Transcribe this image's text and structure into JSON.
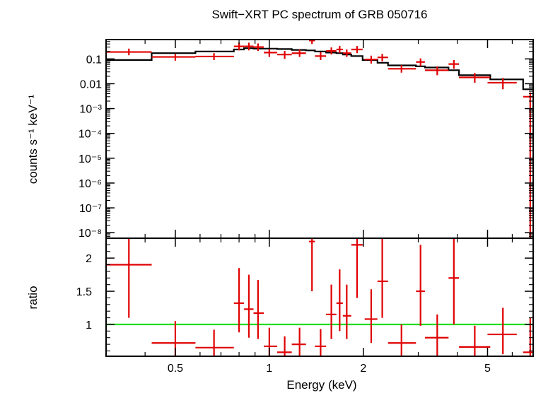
{
  "chart_data": [
    {
      "type": "scatter",
      "title": "Swift−XRT PC spectrum of GRB 050716",
      "xlabel": "Energy (keV)",
      "ylabel": "counts s⁻¹ keV⁻¹",
      "xscale": "log",
      "yscale": "log",
      "xlim": [
        0.3,
        7.0
      ],
      "ylim": [
        6e-09,
        0.6
      ],
      "y_tick_labels": [
        {
          "v": 0.1,
          "label": "0.1"
        },
        {
          "v": 0.01,
          "label": "0.01"
        },
        {
          "v": 0.001,
          "label": "10⁻³"
        },
        {
          "v": 0.0001,
          "label": "10⁻⁴"
        },
        {
          "v": 1e-05,
          "label": "10⁻⁵"
        },
        {
          "v": 1e-06,
          "label": "10⁻⁶"
        },
        {
          "v": 1e-07,
          "label": "10⁻⁷"
        },
        {
          "v": 1e-08,
          "label": "10⁻⁸"
        }
      ],
      "series": [
        {
          "name": "data",
          "color": "#e00000",
          "points": [
            {
              "x": 0.355,
              "xlo": 0.3,
              "xhi": 0.42,
              "y": 0.19,
              "ylo": 0.14,
              "yhi": 0.26
            },
            {
              "x": 0.5,
              "xlo": 0.42,
              "xhi": 0.58,
              "y": 0.12,
              "ylo": 0.085,
              "yhi": 0.16
            },
            {
              "x": 0.665,
              "xlo": 0.58,
              "xhi": 0.77,
              "y": 0.125,
              "ylo": 0.09,
              "yhi": 0.17
            },
            {
              "x": 0.8,
              "xlo": 0.77,
              "xhi": 0.83,
              "y": 0.32,
              "ylo": 0.22,
              "yhi": 0.45
            },
            {
              "x": 0.86,
              "xlo": 0.83,
              "xhi": 0.89,
              "y": 0.32,
              "ylo": 0.22,
              "yhi": 0.45
            },
            {
              "x": 0.92,
              "xlo": 0.89,
              "xhi": 0.96,
              "y": 0.3,
              "ylo": 0.21,
              "yhi": 0.42
            },
            {
              "x": 1.0,
              "xlo": 0.96,
              "xhi": 1.06,
              "y": 0.18,
              "ylo": 0.12,
              "yhi": 0.25
            },
            {
              "x": 1.12,
              "xlo": 1.06,
              "xhi": 1.18,
              "y": 0.15,
              "ylo": 0.1,
              "yhi": 0.21
            },
            {
              "x": 1.25,
              "xlo": 1.18,
              "xhi": 1.31,
              "y": 0.17,
              "ylo": 0.12,
              "yhi": 0.24
            },
            {
              "x": 1.37,
              "xlo": 1.34,
              "xhi": 1.4,
              "y": 0.55,
              "ylo": 0.4,
              "yhi": 0.75
            },
            {
              "x": 1.46,
              "xlo": 1.4,
              "xhi": 1.52,
              "y": 0.13,
              "ylo": 0.09,
              "yhi": 0.19
            },
            {
              "x": 1.58,
              "xlo": 1.52,
              "xhi": 1.64,
              "y": 0.21,
              "ylo": 0.15,
              "yhi": 0.29
            },
            {
              "x": 1.68,
              "xlo": 1.64,
              "xhi": 1.72,
              "y": 0.24,
              "ylo": 0.17,
              "yhi": 0.33
            },
            {
              "x": 1.77,
              "xlo": 1.72,
              "xhi": 1.83,
              "y": 0.17,
              "ylo": 0.12,
              "yhi": 0.24
            },
            {
              "x": 1.91,
              "xlo": 1.83,
              "xhi": 1.99,
              "y": 0.24,
              "ylo": 0.17,
              "yhi": 0.33
            },
            {
              "x": 2.12,
              "xlo": 2.02,
              "xhi": 2.22,
              "y": 0.095,
              "ylo": 0.065,
              "yhi": 0.135
            },
            {
              "x": 2.3,
              "xlo": 2.22,
              "xhi": 2.4,
              "y": 0.115,
              "ylo": 0.08,
              "yhi": 0.16
            },
            {
              "x": 2.65,
              "xlo": 2.4,
              "xhi": 2.95,
              "y": 0.04,
              "ylo": 0.028,
              "yhi": 0.056
            },
            {
              "x": 3.05,
              "xlo": 2.95,
              "xhi": 3.15,
              "y": 0.075,
              "ylo": 0.05,
              "yhi": 0.105
            },
            {
              "x": 3.45,
              "xlo": 3.15,
              "xhi": 3.75,
              "y": 0.035,
              "ylo": 0.022,
              "yhi": 0.05
            },
            {
              "x": 3.9,
              "xlo": 3.75,
              "xhi": 4.05,
              "y": 0.062,
              "ylo": 0.04,
              "yhi": 0.09
            },
            {
              "x": 4.55,
              "xlo": 4.05,
              "xhi": 5.1,
              "y": 0.018,
              "ylo": 0.011,
              "yhi": 0.027
            },
            {
              "x": 5.6,
              "xlo": 5.0,
              "xhi": 6.2,
              "y": 0.011,
              "ylo": 0.006,
              "yhi": 0.017
            },
            {
              "x": 6.85,
              "xlo": 6.5,
              "xhi": 7.0,
              "y": 0.003,
              "ylo": 5.5e-09,
              "yhi": 0.0045
            }
          ]
        },
        {
          "name": "model",
          "color": "#000000",
          "steps": [
            {
              "xlo": 0.3,
              "xhi": 0.42,
              "y": 0.09
            },
            {
              "xlo": 0.42,
              "xhi": 0.58,
              "y": 0.17
            },
            {
              "xlo": 0.58,
              "xhi": 0.77,
              "y": 0.2
            },
            {
              "xlo": 0.77,
              "xhi": 0.83,
              "y": 0.24
            },
            {
              "xlo": 0.83,
              "xhi": 0.89,
              "y": 0.27
            },
            {
              "xlo": 0.89,
              "xhi": 0.96,
              "y": 0.26
            },
            {
              "xlo": 0.96,
              "xhi": 1.06,
              "y": 0.26
            },
            {
              "xlo": 1.06,
              "xhi": 1.18,
              "y": 0.25
            },
            {
              "xlo": 1.18,
              "xhi": 1.31,
              "y": 0.23
            },
            {
              "xlo": 1.31,
              "xhi": 1.4,
              "y": 0.22
            },
            {
              "xlo": 1.4,
              "xhi": 1.52,
              "y": 0.2
            },
            {
              "xlo": 1.52,
              "xhi": 1.64,
              "y": 0.18
            },
            {
              "xlo": 1.64,
              "xhi": 1.72,
              "y": 0.17
            },
            {
              "xlo": 1.72,
              "xhi": 1.83,
              "y": 0.15
            },
            {
              "xlo": 1.83,
              "xhi": 1.99,
              "y": 0.13
            },
            {
              "xlo": 1.99,
              "xhi": 2.22,
              "y": 0.09
            },
            {
              "xlo": 2.22,
              "xhi": 2.4,
              "y": 0.07
            },
            {
              "xlo": 2.4,
              "xhi": 2.95,
              "y": 0.055
            },
            {
              "xlo": 2.95,
              "xhi": 3.15,
              "y": 0.05
            },
            {
              "xlo": 3.15,
              "xhi": 3.75,
              "y": 0.045
            },
            {
              "xlo": 3.75,
              "xhi": 4.05,
              "y": 0.035
            },
            {
              "xlo": 4.05,
              "xhi": 5.1,
              "y": 0.022
            },
            {
              "xlo": 5.1,
              "xhi": 6.5,
              "y": 0.015
            },
            {
              "xlo": 6.5,
              "xhi": 7.0,
              "y": 0.006
            }
          ]
        }
      ]
    },
    {
      "type": "scatter",
      "xlabel": "Energy (keV)",
      "ylabel": "ratio",
      "xscale": "log",
      "xlim": [
        0.3,
        7.0
      ],
      "ylim": [
        0.52,
        2.3
      ],
      "x_tick_labels": [
        {
          "v": 0.5,
          "label": "0.5"
        },
        {
          "v": 1,
          "label": "1"
        },
        {
          "v": 2,
          "label": "2"
        },
        {
          "v": 5,
          "label": "5"
        }
      ],
      "y_tick_labels": [
        {
          "v": 1,
          "label": "1"
        },
        {
          "v": 1.5,
          "label": "1.5"
        },
        {
          "v": 2,
          "label": "2"
        }
      ],
      "reference_line": {
        "y": 1,
        "color": "#22dd22"
      },
      "series": [
        {
          "name": "ratio",
          "color": "#e00000",
          "points": [
            {
              "x": 0.355,
              "xlo": 0.3,
              "xhi": 0.42,
              "y": 1.9,
              "ylo": 1.1,
              "yhi": 2.3
            },
            {
              "x": 0.5,
              "xlo": 0.42,
              "xhi": 0.58,
              "y": 0.72,
              "ylo": 0.52,
              "yhi": 1.05
            },
            {
              "x": 0.665,
              "xlo": 0.58,
              "xhi": 0.77,
              "y": 0.65,
              "ylo": 0.52,
              "yhi": 0.92
            },
            {
              "x": 0.8,
              "xlo": 0.77,
              "xhi": 0.83,
              "y": 1.32,
              "ylo": 0.88,
              "yhi": 1.85
            },
            {
              "x": 0.86,
              "xlo": 0.83,
              "xhi": 0.89,
              "y": 1.23,
              "ylo": 0.8,
              "yhi": 1.75
            },
            {
              "x": 0.92,
              "xlo": 0.89,
              "xhi": 0.96,
              "y": 1.17,
              "ylo": 0.78,
              "yhi": 1.67
            },
            {
              "x": 1.0,
              "xlo": 0.96,
              "xhi": 1.06,
              "y": 0.67,
              "ylo": 0.52,
              "yhi": 0.95
            },
            {
              "x": 1.12,
              "xlo": 1.06,
              "xhi": 1.18,
              "y": 0.58,
              "ylo": 0.52,
              "yhi": 0.82
            },
            {
              "x": 1.25,
              "xlo": 1.18,
              "xhi": 1.31,
              "y": 0.7,
              "ylo": 0.52,
              "yhi": 0.95
            },
            {
              "x": 1.37,
              "xlo": 1.34,
              "xhi": 1.4,
              "y": 2.25,
              "ylo": 1.5,
              "yhi": 2.3
            },
            {
              "x": 1.46,
              "xlo": 1.4,
              "xhi": 1.52,
              "y": 0.67,
              "ylo": 0.52,
              "yhi": 0.93
            },
            {
              "x": 1.58,
              "xlo": 1.52,
              "xhi": 1.64,
              "y": 1.15,
              "ylo": 0.78,
              "yhi": 1.6
            },
            {
              "x": 1.68,
              "xlo": 1.64,
              "xhi": 1.72,
              "y": 1.32,
              "ylo": 0.9,
              "yhi": 1.83
            },
            {
              "x": 1.77,
              "xlo": 1.72,
              "xhi": 1.83,
              "y": 1.13,
              "ylo": 0.78,
              "yhi": 1.6
            },
            {
              "x": 1.91,
              "xlo": 1.83,
              "xhi": 1.99,
              "y": 2.2,
              "ylo": 1.4,
              "yhi": 2.3
            },
            {
              "x": 2.12,
              "xlo": 2.02,
              "xhi": 2.22,
              "y": 1.08,
              "ylo": 0.72,
              "yhi": 1.53
            },
            {
              "x": 2.3,
              "xlo": 2.22,
              "xhi": 2.4,
              "y": 1.65,
              "ylo": 1.1,
              "yhi": 2.3
            },
            {
              "x": 2.65,
              "xlo": 2.4,
              "xhi": 2.95,
              "y": 0.72,
              "ylo": 0.52,
              "yhi": 1.0
            },
            {
              "x": 3.05,
              "xlo": 2.95,
              "xhi": 3.15,
              "y": 1.5,
              "ylo": 0.98,
              "yhi": 2.2
            },
            {
              "x": 3.45,
              "xlo": 3.15,
              "xhi": 3.75,
              "y": 0.8,
              "ylo": 0.52,
              "yhi": 1.15
            },
            {
              "x": 3.9,
              "xlo": 3.75,
              "xhi": 4.05,
              "y": 1.7,
              "ylo": 1.0,
              "yhi": 2.3
            },
            {
              "x": 4.55,
              "xlo": 4.05,
              "xhi": 5.1,
              "y": 0.66,
              "ylo": 0.52,
              "yhi": 0.98
            },
            {
              "x": 5.6,
              "xlo": 5.0,
              "xhi": 6.2,
              "y": 0.85,
              "ylo": 0.55,
              "yhi": 1.25
            },
            {
              "x": 6.85,
              "xlo": 6.5,
              "xhi": 7.0,
              "y": 0.58,
              "ylo": 0.52,
              "yhi": 1.1
            }
          ]
        }
      ]
    }
  ]
}
